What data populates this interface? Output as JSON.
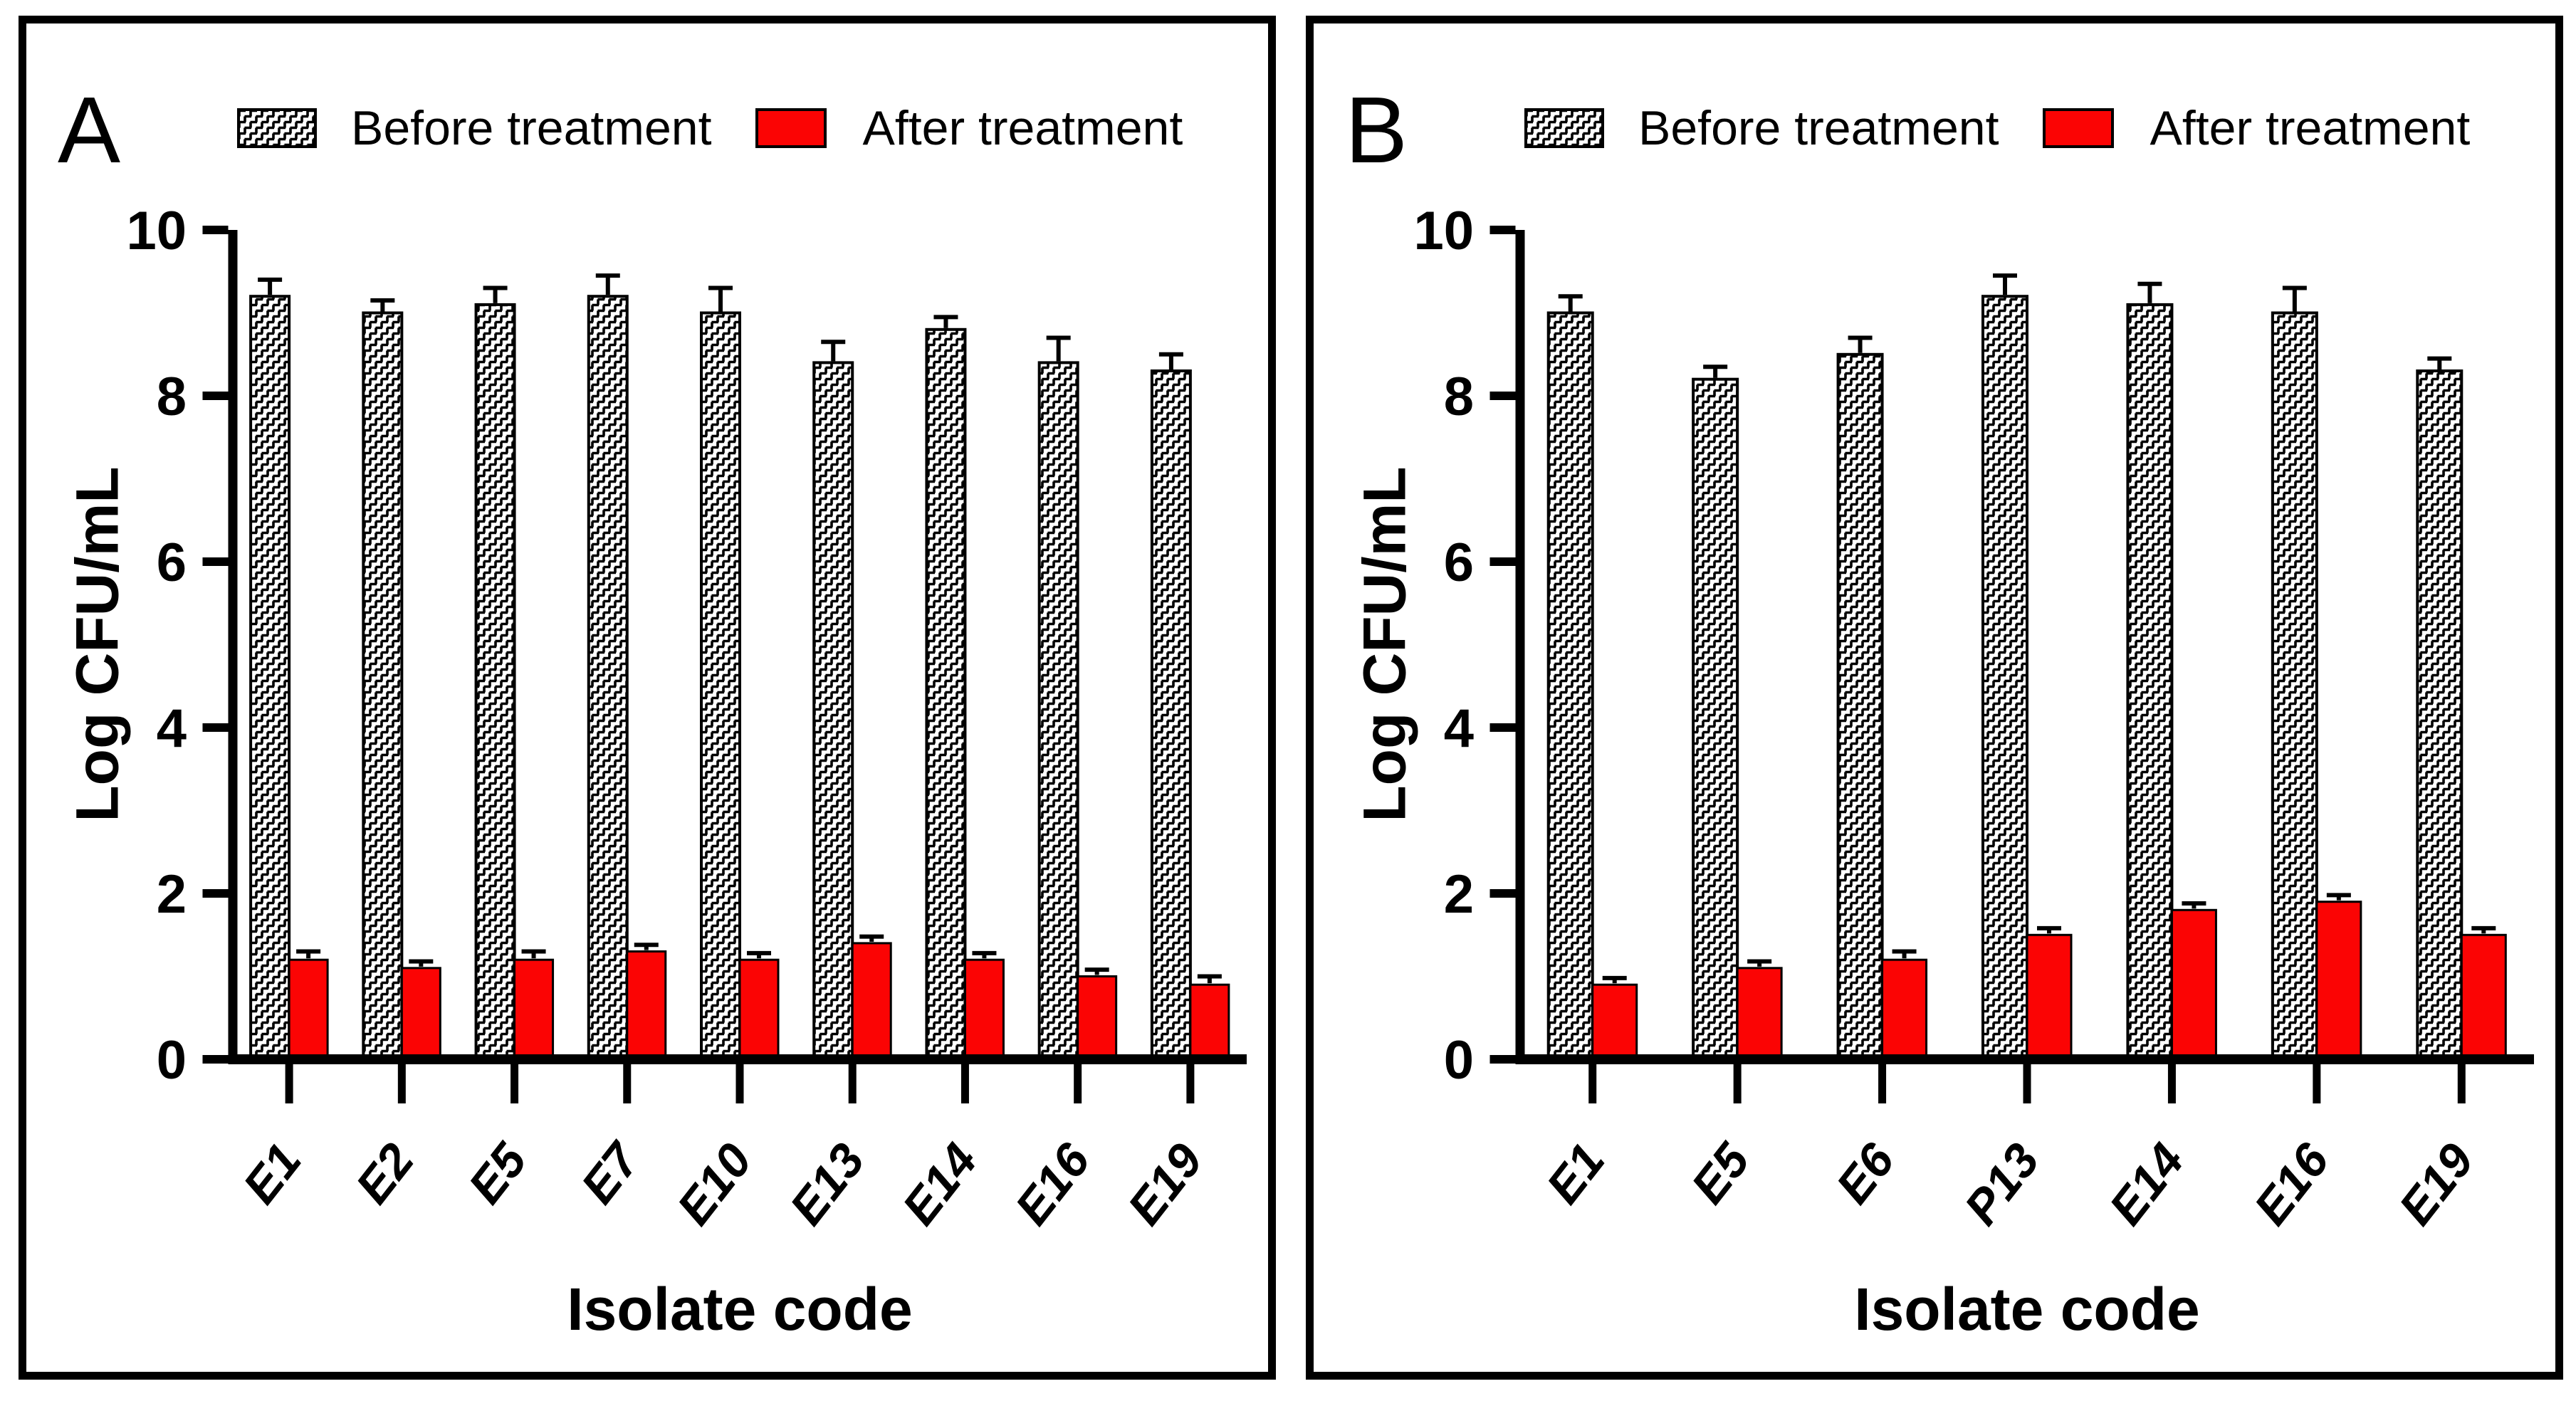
{
  "figure": {
    "background": "#ffffff",
    "panel_border_color": "#000000"
  },
  "colors": {
    "before_fill": "hatched-bricks-pattern",
    "after_fill": "#fb0404",
    "axis": "#000000",
    "text": "#000000"
  },
  "legend": {
    "before_label": "Before treatment",
    "after_label": "After treatment"
  },
  "panels": [
    {
      "letter": "A",
      "ylabel": "Log CFU/mL",
      "xlabel": "Isolate code"
    },
    {
      "letter": "B",
      "ylabel": "Log CFU/mL",
      "xlabel": "Isolate code"
    }
  ],
  "chart_data": [
    {
      "type": "bar",
      "panel": "A",
      "title": "",
      "xlabel": "Isolate code",
      "ylabel": "Log CFU/mL",
      "ylim": [
        0,
        10
      ],
      "yticks": [
        0,
        2,
        4,
        6,
        8,
        10
      ],
      "grid": false,
      "legend_position": "top",
      "categories": [
        "E1",
        "E2",
        "E5",
        "E7",
        "E10",
        "E13",
        "E14",
        "E16",
        "E19"
      ],
      "series": [
        {
          "name": "Before treatment",
          "style": "hatched",
          "values": [
            9.2,
            9.0,
            9.1,
            9.2,
            9.0,
            8.4,
            8.8,
            8.4,
            8.3
          ],
          "errors": [
            0.2,
            0.15,
            0.2,
            0.25,
            0.3,
            0.25,
            0.15,
            0.3,
            0.2
          ]
        },
        {
          "name": "After treatment",
          "style": "solid-red",
          "values": [
            1.2,
            1.1,
            1.2,
            1.3,
            1.2,
            1.4,
            1.2,
            1.0,
            0.9
          ],
          "errors": [
            0.1,
            0.08,
            0.1,
            0.08,
            0.08,
            0.08,
            0.08,
            0.08,
            0.1
          ]
        }
      ]
    },
    {
      "type": "bar",
      "panel": "B",
      "title": "",
      "xlabel": "Isolate code",
      "ylabel": "Log CFU/mL",
      "ylim": [
        0,
        10
      ],
      "yticks": [
        0,
        2,
        4,
        6,
        8,
        10
      ],
      "grid": false,
      "legend_position": "top",
      "categories": [
        "E1",
        "E5",
        "E6",
        "P13",
        "E14",
        "E16",
        "E19"
      ],
      "series": [
        {
          "name": "Before treatment",
          "style": "hatched",
          "values": [
            9.0,
            8.2,
            8.5,
            9.2,
            9.1,
            9.0,
            8.3
          ],
          "errors": [
            0.2,
            0.15,
            0.2,
            0.25,
            0.25,
            0.3,
            0.15
          ]
        },
        {
          "name": "After treatment",
          "style": "solid-red",
          "values": [
            0.9,
            1.1,
            1.2,
            1.5,
            1.8,
            1.9,
            1.5
          ],
          "errors": [
            0.08,
            0.08,
            0.1,
            0.08,
            0.08,
            0.08,
            0.08
          ]
        }
      ]
    }
  ]
}
